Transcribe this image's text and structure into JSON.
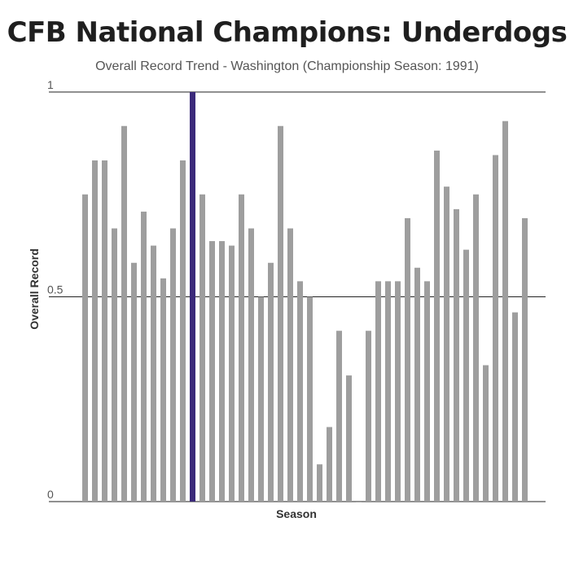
{
  "chart_data": {
    "type": "bar",
    "title": "CFB National Champions: Underdogs",
    "subtitle": "Overall Record Trend - Washington (Championship Season: 1991)",
    "xlabel": "Season",
    "ylabel": "Overall Record",
    "ylim": [
      0,
      1
    ],
    "yticks": [
      "0",
      "0.5",
      "1"
    ],
    "grid": true,
    "highlight_index": 11,
    "colors": {
      "bar": "#9e9e9e",
      "highlight": "#3b2a7a",
      "grid": "#222222"
    },
    "values": [
      0.75,
      0.833,
      0.833,
      0.667,
      0.917,
      0.583,
      0.708,
      0.625,
      0.545,
      0.667,
      0.833,
      1.0,
      0.75,
      0.636,
      0.636,
      0.625,
      0.75,
      0.667,
      0.5,
      0.583,
      0.917,
      0.667,
      0.538,
      0.5,
      0.091,
      0.182,
      0.417,
      0.308,
      0.0,
      0.417,
      0.538,
      0.538,
      0.538,
      0.692,
      0.571,
      0.538,
      0.857,
      0.769,
      0.714,
      0.615,
      0.75,
      0.333,
      0.846,
      0.929,
      0.462,
      0.692
    ]
  }
}
